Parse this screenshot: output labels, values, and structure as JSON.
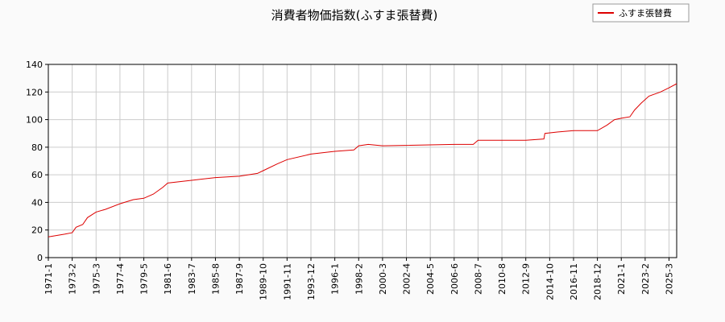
{
  "chart_data": {
    "type": "line",
    "title": "消費者物価指数(ふすま張替費)",
    "x": [
      "1971-1",
      "1972-6",
      "1973-2",
      "1973-6",
      "1974-1",
      "1974-6",
      "1975-3",
      "1976-1",
      "1977-4",
      "1978-6",
      "1979-5",
      "1980-3",
      "1981-1",
      "1981-6",
      "1983-7",
      "1985-8",
      "1987-9",
      "1989-4",
      "1989-10",
      "1991-1",
      "1991-11",
      "1993-12",
      "1996-1",
      "1997-9",
      "1998-2",
      "1998-12",
      "2000-3",
      "2006-6",
      "2008-2",
      "2008-7",
      "2010-8",
      "2012-9",
      "2014-4",
      "2014-5",
      "2015-6",
      "2016-11",
      "2018-12",
      "2019-10",
      "2020-6",
      "2021-1",
      "2021-10",
      "2022-3",
      "2022-10",
      "2023-6",
      "2024-6",
      "2025-3",
      "2025-11"
    ],
    "series": [
      {
        "name": "ふすま張替費",
        "color": "#dd0000",
        "values": [
          15,
          17,
          18,
          22,
          24,
          29,
          33,
          35,
          39,
          42,
          43,
          46,
          51,
          54,
          56,
          58,
          59,
          61,
          63,
          68,
          71,
          75,
          77,
          78,
          81,
          82,
          81,
          82,
          82,
          85,
          85,
          85,
          86,
          90,
          91,
          92,
          92,
          96,
          100,
          101,
          102,
          107,
          112,
          117,
          120,
          123,
          126
        ]
      }
    ],
    "ylim": [
      0,
      140
    ],
    "yticks": [
      0,
      20,
      40,
      60,
      80,
      100,
      120,
      140
    ],
    "xticks": [
      "1971-1",
      "1973-2",
      "1975-3",
      "1977-4",
      "1979-5",
      "1981-6",
      "1983-7",
      "1985-8",
      "1987-9",
      "1989-10",
      "1991-11",
      "1993-12",
      "1996-1",
      "1998-2",
      "2000-3",
      "2002-4",
      "2004-5",
      "2006-6",
      "2008-7",
      "2010-8",
      "2012-9",
      "2014-10",
      "2016-11",
      "2018-12",
      "2021-1",
      "2023-2",
      "2025-3"
    ],
    "grid": true,
    "legend": "top-right"
  }
}
